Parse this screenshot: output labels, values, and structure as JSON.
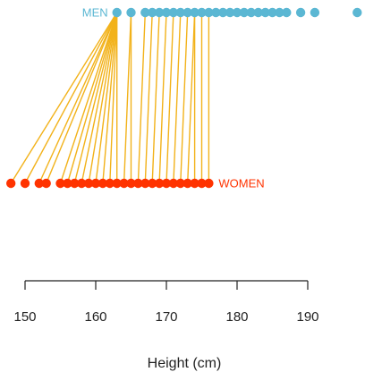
{
  "chart_data": {
    "type": "scatter",
    "title": "",
    "xlabel": "Height (cm)",
    "ylabel": "",
    "xlim": [
      148,
      198
    ],
    "xticks": [
      150,
      160,
      170,
      180,
      190
    ],
    "grid": false,
    "legend": "none",
    "series": [
      {
        "name": "MEN",
        "color": "#5bb7d3",
        "x": [
          163,
          165,
          167,
          168,
          169,
          170,
          171,
          172,
          173,
          174,
          175,
          176,
          177,
          178,
          179,
          180,
          181,
          182,
          183,
          184,
          185,
          186,
          187,
          189,
          191,
          197
        ]
      },
      {
        "name": "WOMEN",
        "color": "#ff3300",
        "x": [
          148,
          150,
          152,
          153,
          155,
          156,
          157,
          158,
          159,
          160,
          161,
          162,
          163,
          164,
          165,
          166,
          167,
          168,
          169,
          170,
          171,
          172,
          173,
          174,
          175,
          176
        ]
      }
    ],
    "matching": {
      "color": "#f2b21a",
      "pairs": [
        [
          163,
          148
        ],
        [
          163,
          150
        ],
        [
          163,
          152
        ],
        [
          163,
          153
        ],
        [
          163,
          155
        ],
        [
          163,
          156
        ],
        [
          163,
          157
        ],
        [
          163,
          158
        ],
        [
          163,
          159
        ],
        [
          163,
          160
        ],
        [
          163,
          161
        ],
        [
          163,
          162
        ],
        [
          163,
          163
        ],
        [
          165,
          164
        ],
        [
          165,
          165
        ],
        [
          167,
          166
        ],
        [
          168,
          167
        ],
        [
          169,
          168
        ],
        [
          170,
          169
        ],
        [
          171,
          170
        ],
        [
          172,
          171
        ],
        [
          173,
          172
        ],
        [
          174,
          173
        ],
        [
          174,
          174
        ],
        [
          175,
          175
        ],
        [
          176,
          176
        ]
      ]
    }
  }
}
